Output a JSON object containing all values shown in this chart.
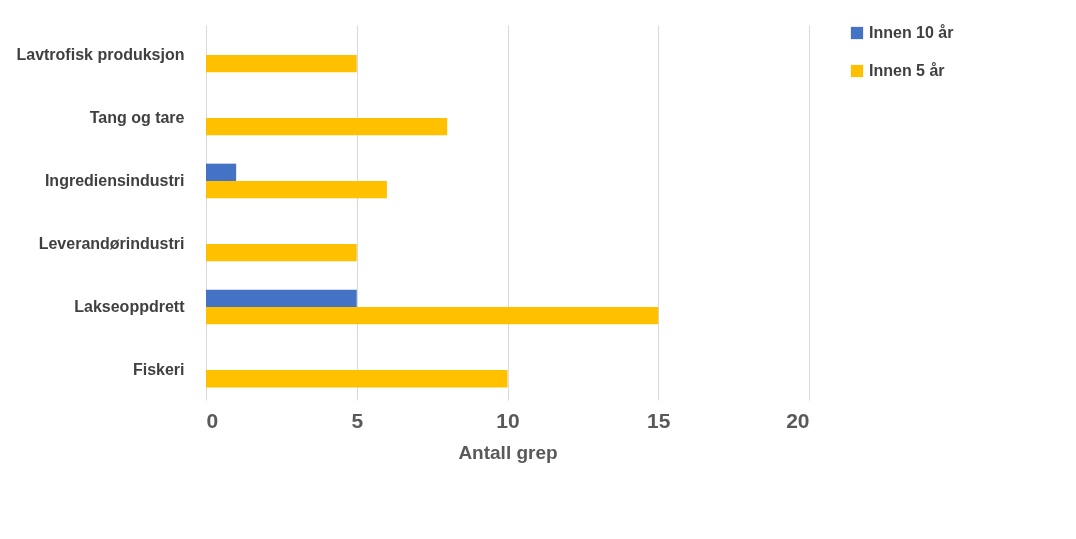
{
  "chart_data": {
    "type": "bar",
    "orientation": "horizontal",
    "xlabel": "Antall grep",
    "categories": [
      "Lavtrofisk produksjon",
      "Tang og tare",
      "Ingrediensindustri",
      "Leverandørindustri",
      "Lakseoppdrett",
      "Fiskeri"
    ],
    "series": [
      {
        "name": "Innen 10 år",
        "color": "#4472c4",
        "values": [
          null,
          null,
          1,
          null,
          5,
          null
        ]
      },
      {
        "name": "Innen 5 år",
        "color": "#ffc000",
        "values": [
          5,
          8,
          6,
          5,
          15,
          10
        ]
      }
    ],
    "xlim": [
      0,
      20
    ],
    "xticks": [
      0,
      5,
      10,
      15,
      20
    ],
    "grid": "x",
    "legend": "right"
  }
}
